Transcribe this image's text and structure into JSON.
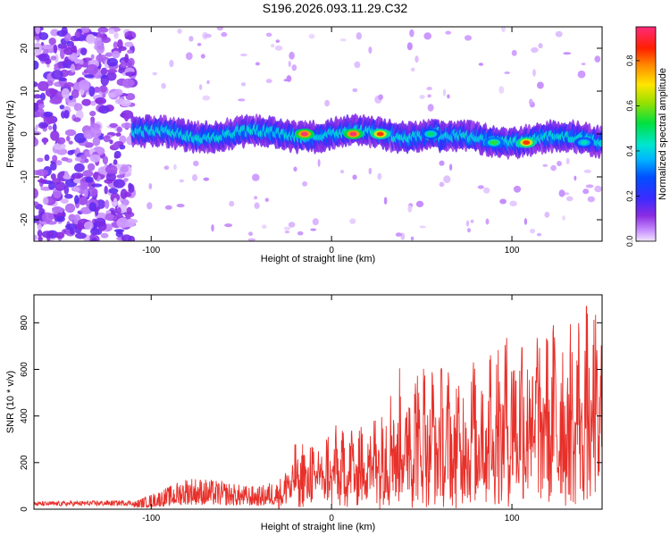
{
  "title": "S196.2026.093.11.29.C32",
  "chart_data": [
    {
      "type": "heatmap",
      "title": "S196.2026.093.11.29.C32",
      "xlabel": "Height of straight line (km)",
      "ylabel": "Frequency (Hz)",
      "xlim": [
        -165,
        150
      ],
      "ylim": [
        -25,
        25
      ],
      "xticks": [
        -100,
        0,
        100
      ],
      "yticks": [
        -20,
        -10,
        0,
        10,
        20
      ],
      "colorbar": {
        "label": "Normalized spectral amplitude",
        "range": [
          0,
          0.95
        ],
        "ticks": [
          0.0,
          0.2,
          0.4,
          0.6,
          0.8
        ]
      },
      "ridge": {
        "description_free": true,
        "center_freq_hz": 0,
        "onset_height_km": -110,
        "peaks": [
          {
            "x": -15,
            "y": 0,
            "amp": 0.95
          },
          {
            "x": 12,
            "y": 0,
            "amp": 0.95
          },
          {
            "x": 27,
            "y": 0,
            "amp": 0.85
          },
          {
            "x": 108,
            "y": -2,
            "amp": 0.85
          },
          {
            "x": 90,
            "y": -2,
            "amp": 0.55
          },
          {
            "x": 55,
            "y": 0,
            "amp": 0.5
          },
          {
            "x": 140,
            "y": -2,
            "amp": 0.45
          }
        ]
      }
    },
    {
      "type": "line",
      "xlabel": "Height of straight line (km)",
      "ylabel": "SNR (10 * v/v)",
      "xlim": [
        -165,
        150
      ],
      "ylim": [
        0,
        920
      ],
      "xticks": [
        -100,
        0,
        100
      ],
      "yticks": [
        0,
        200,
        400,
        600,
        800
      ],
      "series": [
        {
          "name": "SNR",
          "color": "#e8302a",
          "envelope_x": [
            -165,
            -110,
            -100,
            -90,
            -80,
            -70,
            -60,
            -50,
            -40,
            -30,
            -20,
            -10,
            0,
            10,
            20,
            30,
            40,
            50,
            60,
            70,
            80,
            90,
            100,
            110,
            120,
            130,
            140,
            150
          ],
          "envelope_y": [
            25,
            30,
            60,
            90,
            130,
            120,
            110,
            95,
            90,
            120,
            300,
            330,
            360,
            380,
            460,
            580,
            640,
            700,
            640,
            620,
            700,
            780,
            820,
            880,
            850,
            820,
            900,
            880
          ]
        }
      ]
    }
  ],
  "colors": {
    "line": "#e8302a",
    "axis": "#000000",
    "background": "#ffffff"
  }
}
